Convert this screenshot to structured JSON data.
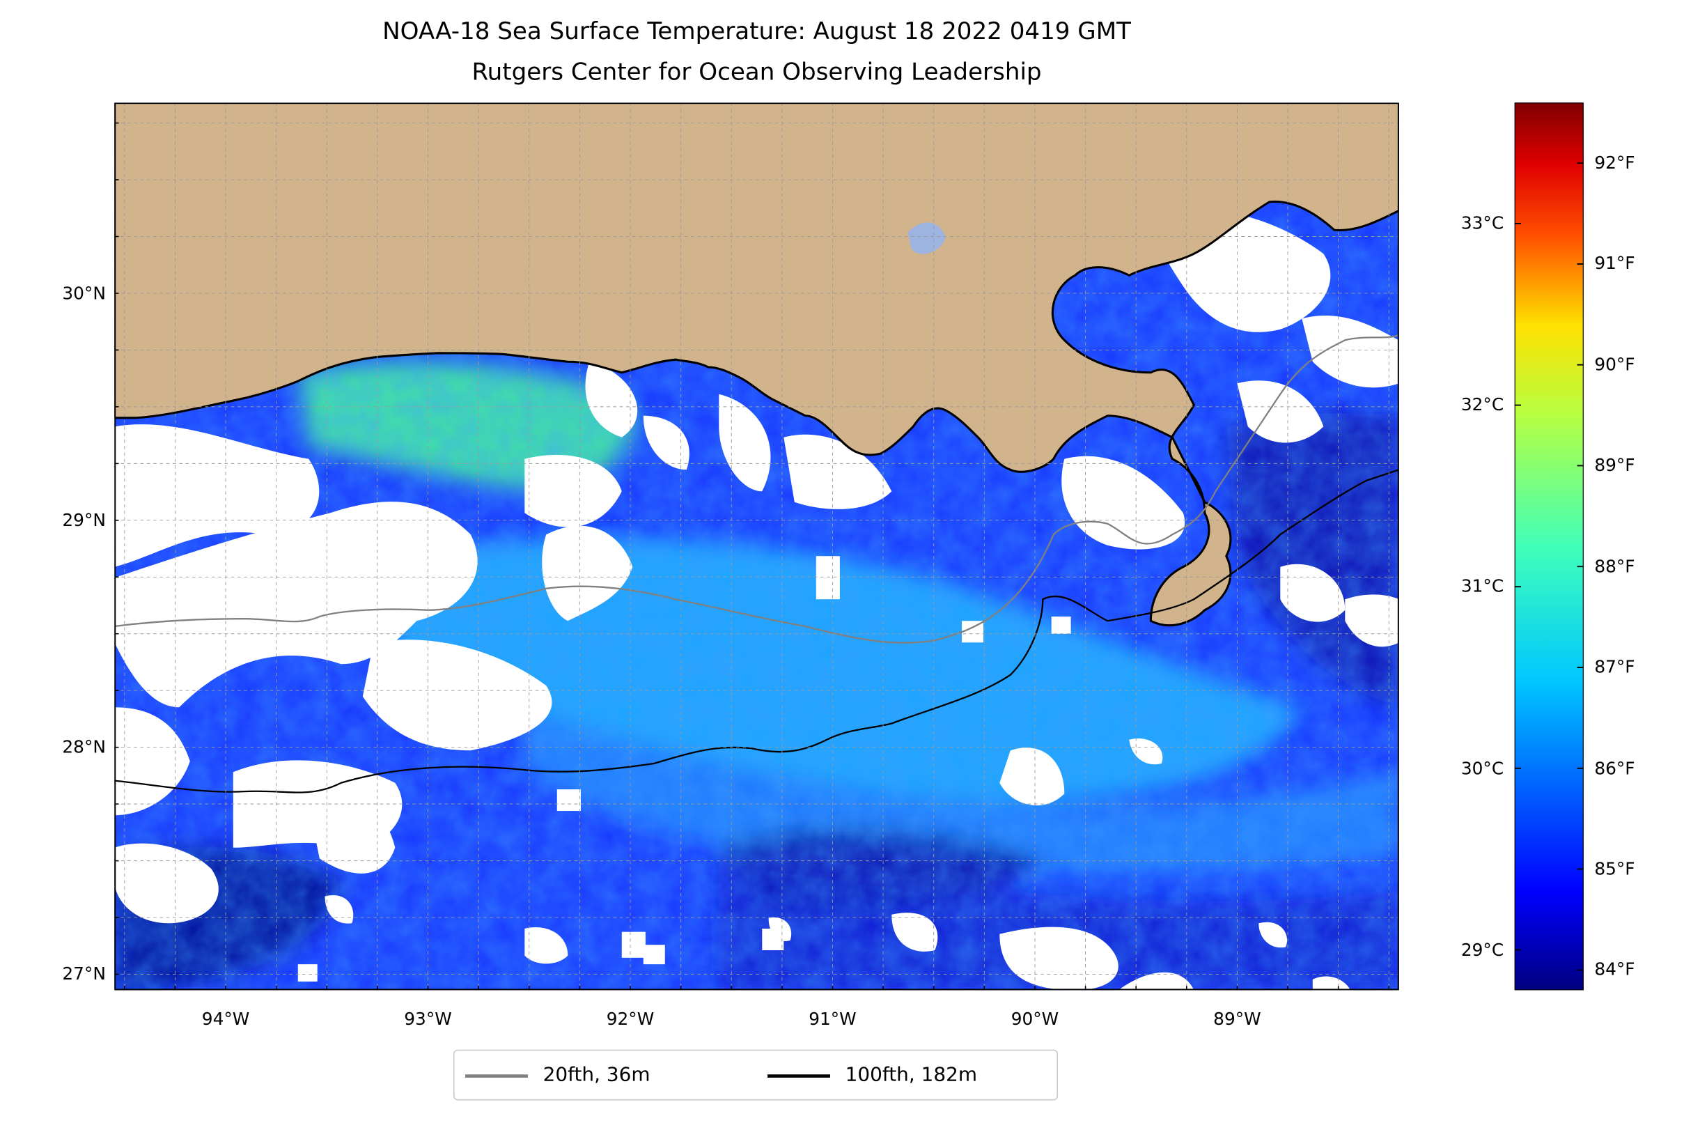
{
  "title": {
    "line1": "NOAA-18 Sea Surface Temperature: August 18 2022 0419 GMT",
    "line2": "Rutgers Center for Ocean Observing Leadership"
  },
  "map": {
    "lon_range": [
      -94.55,
      -88.2
    ],
    "lat_range": [
      26.93,
      30.84
    ],
    "lon_ticks": [
      -94,
      -93,
      -92,
      -91,
      -90,
      -89
    ],
    "lon_tick_labels": [
      "94°W",
      "93°W",
      "92°W",
      "91°W",
      "90°W",
      "89°W"
    ],
    "lat_ticks": [
      27,
      28,
      29,
      30
    ],
    "lat_tick_labels": [
      "27°N",
      "28°N",
      "29°N",
      "30°N"
    ],
    "gridlines": true,
    "colors": {
      "land": "#d2b48c",
      "no_data": "#ffffff",
      "lake": "#9db3e0",
      "coastline": "#000000",
      "isobath_20fth": "#808080",
      "isobath_100fth": "#000000"
    },
    "regions": [
      "Louisiana coast",
      "Mississippi River delta",
      "Gulf of Mexico"
    ]
  },
  "colorbar": {
    "colormap": "jet",
    "range_f": [
      83.8,
      92.6
    ],
    "fahrenheit_ticks": [
      84,
      85,
      86,
      87,
      88,
      89,
      90,
      91,
      92
    ],
    "fahrenheit_labels": [
      "84°F",
      "85°F",
      "86°F",
      "87°F",
      "88°F",
      "89°F",
      "90°F",
      "91°F",
      "92°F"
    ],
    "celsius_ticks": [
      29,
      30,
      31,
      32,
      33
    ],
    "celsius_labels": [
      "29°C",
      "30°C",
      "31°C",
      "32°C",
      "33°C"
    ]
  },
  "legend": {
    "placement": "bottom-center",
    "items": [
      {
        "label": "20fth, 36m",
        "color": "#808080"
      },
      {
        "label": "100fth, 182m",
        "color": "#000000"
      }
    ]
  }
}
